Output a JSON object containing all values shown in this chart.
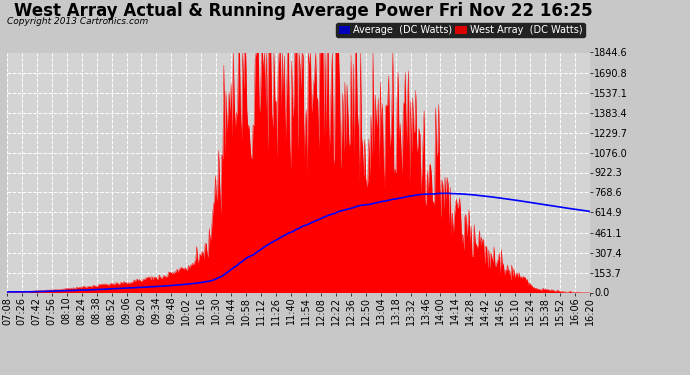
{
  "title": "West Array Actual & Running Average Power Fri Nov 22 16:25",
  "copyright": "Copyright 2013 Cartronics.com",
  "ylabel_right_values": [
    0.0,
    153.7,
    307.4,
    461.1,
    614.9,
    768.6,
    922.3,
    1076.0,
    1229.7,
    1383.4,
    1537.1,
    1690.8,
    1844.6
  ],
  "y_max": 1844.6,
  "bg_color": "#c8c8c8",
  "plot_bg_color": "#d4d4d4",
  "grid_color": "#ffffff",
  "bar_color": "#ff0000",
  "avg_color": "#0000ff",
  "title_fontsize": 12,
  "tick_fontsize": 7,
  "x_tick_labels": [
    "07:08",
    "07:26",
    "07:42",
    "07:56",
    "08:10",
    "08:24",
    "08:38",
    "08:52",
    "09:06",
    "09:20",
    "09:34",
    "09:48",
    "10:02",
    "10:16",
    "10:30",
    "10:44",
    "10:58",
    "11:12",
    "11:26",
    "11:40",
    "11:54",
    "12:08",
    "12:22",
    "12:36",
    "12:50",
    "13:04",
    "13:18",
    "13:32",
    "13:46",
    "14:00",
    "14:14",
    "14:28",
    "14:42",
    "14:56",
    "15:10",
    "15:24",
    "15:38",
    "15:52",
    "16:06",
    "16:20"
  ],
  "n_display_ticks": 40,
  "n_points": 560,
  "start_hour": 7.1333,
  "end_hour": 16.3333
}
